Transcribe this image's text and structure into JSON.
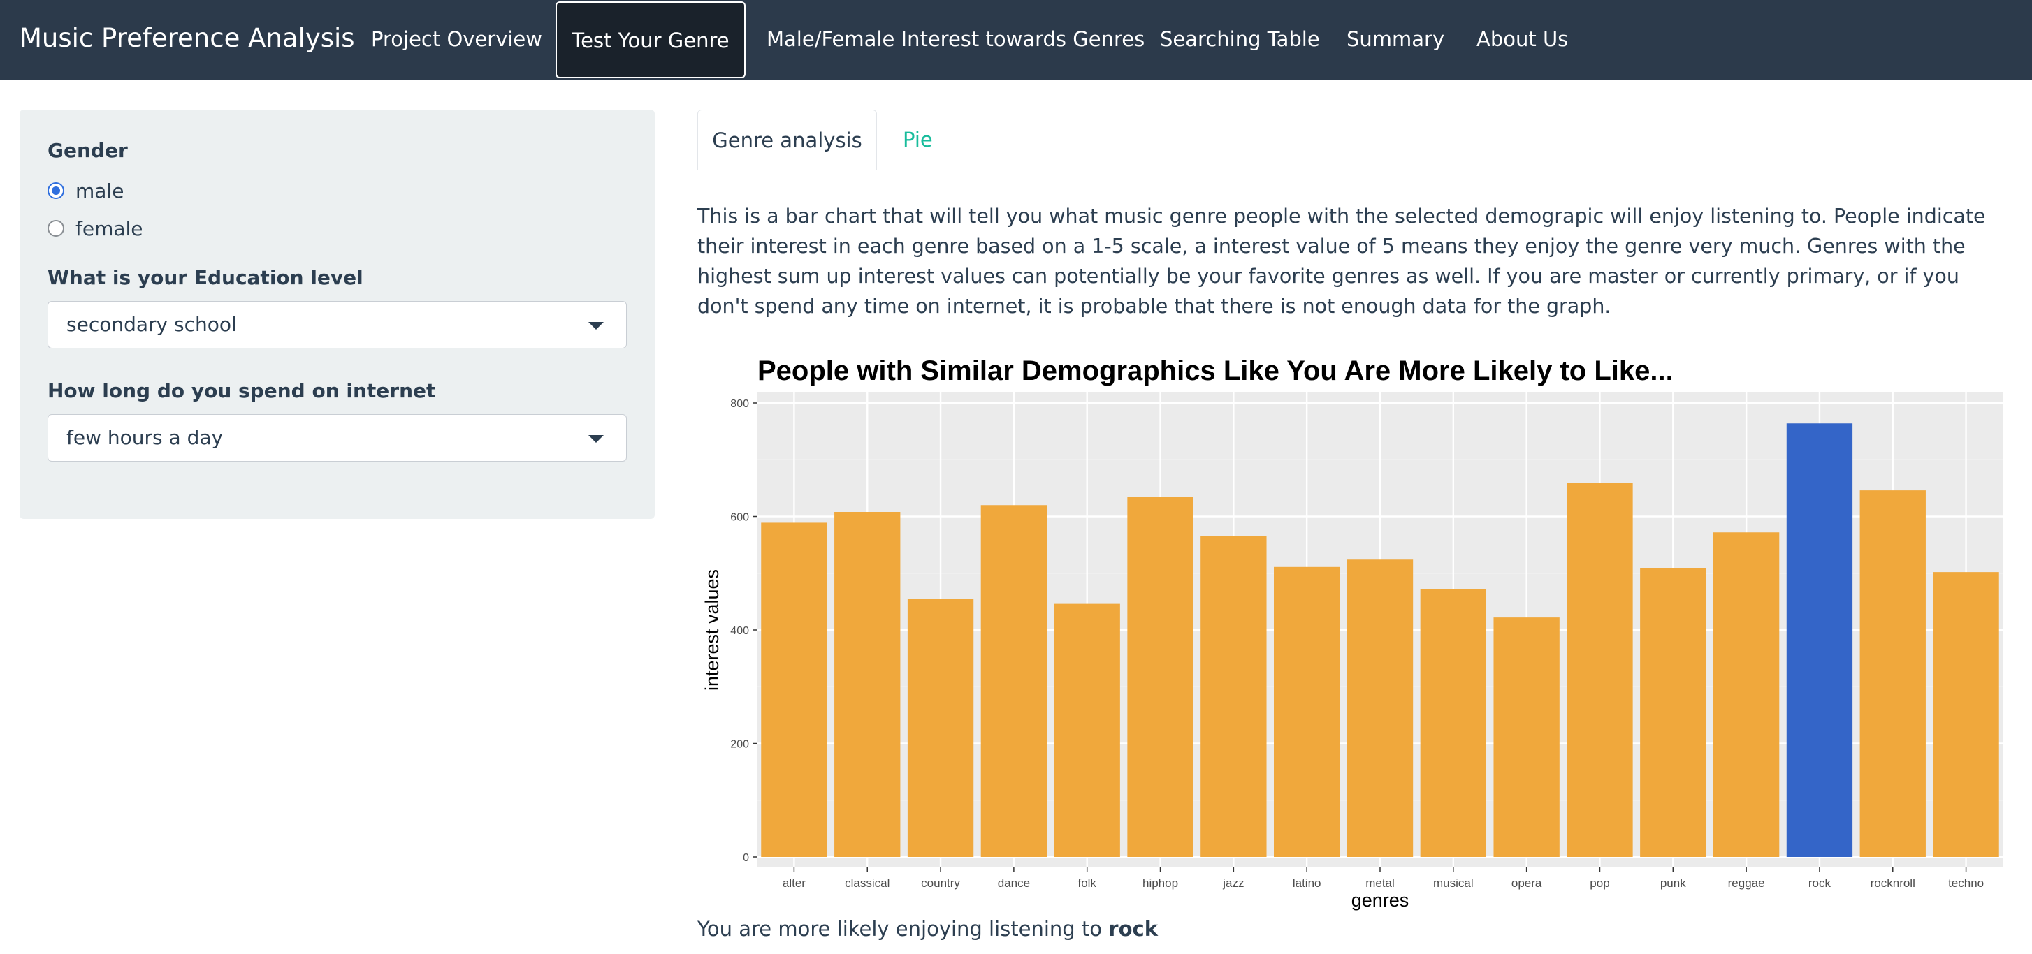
{
  "navbar": {
    "brand": "Music Preference Analysis",
    "items": [
      {
        "label": "Project Overview"
      },
      {
        "label": "Test Your Genre",
        "active": true
      },
      {
        "label": "Male/Female Interest towards Genres"
      },
      {
        "label": "Searching Table"
      },
      {
        "label": "Summary"
      },
      {
        "label": "About Us"
      }
    ]
  },
  "sidebar": {
    "gender_label": "Gender",
    "gender_options": [
      {
        "label": "male",
        "checked": true
      },
      {
        "label": "female",
        "checked": false
      }
    ],
    "education_label": "What is your Education level",
    "education_value": "secondary school",
    "internet_label": "How long do you spend on internet",
    "internet_value": "few hours a day"
  },
  "tabs": [
    {
      "label": "Genre analysis",
      "active": true
    },
    {
      "label": "Pie",
      "active": false
    }
  ],
  "description": "This is a bar chart that will tell you what music genre people with the selected demograpic will enjoy listening to. People indicate their interest in each genre based on a 1-5 scale, a interest value of 5 means they enjoy the genre very much. Genres with the highest sum up interest values can potentially be your favorite genres as well. If you are master or currently primary, or if you don't spend any time on internet, it is probable that there is not enough data for the graph.",
  "verdict": {
    "prefix": "You are more likely enjoying listening to ",
    "genre": "rock"
  },
  "colors": {
    "bar": "#f0a83c",
    "highlight": "#3465c8",
    "panel": "#ebebeb",
    "grid": "#ffffff",
    "link": "#18bc9c",
    "navbar": "#2c3a4b"
  },
  "chart_data": {
    "type": "bar",
    "title": "People with Similar Demographics Like You Are More Likely to Like...",
    "xlabel": "genres",
    "ylabel": "interest values",
    "ylim": [
      0,
      800
    ],
    "yticks": [
      0,
      200,
      400,
      600,
      800
    ],
    "grid": true,
    "legend": "none",
    "categories": [
      "alter",
      "classical",
      "country",
      "dance",
      "folk",
      "hiphop",
      "jazz",
      "latino",
      "metal",
      "musical",
      "opera",
      "pop",
      "punk",
      "reggae",
      "rock",
      "rocknroll",
      "techno"
    ],
    "values": [
      589,
      608,
      455,
      620,
      446,
      634,
      566,
      511,
      524,
      472,
      422,
      659,
      509,
      572,
      764,
      646,
      502
    ],
    "highlight": "rock"
  }
}
